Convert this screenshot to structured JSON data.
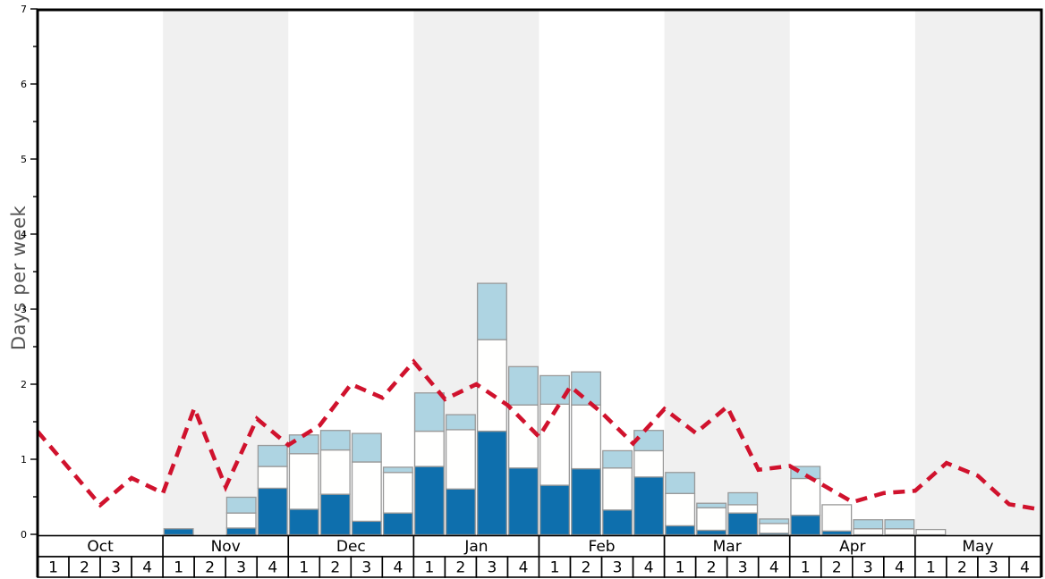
{
  "chart_data": {
    "type": "bar",
    "subtype": "stacked_bars_with_dashed_line_overlay",
    "title": "",
    "xlabel": "",
    "ylabel": "Days per week",
    "ylim": [
      0,
      7
    ],
    "y_major_ticks": [
      0,
      1,
      2,
      3,
      4,
      5,
      6,
      7
    ],
    "y_minor_tick_step": 0.5,
    "grid": false,
    "legend": "none",
    "months": [
      "Oct",
      "Nov",
      "Dec",
      "Jan",
      "Feb",
      "Mar",
      "Apr",
      "May"
    ],
    "week_labels": [
      "1",
      "2",
      "3",
      "4"
    ],
    "shaded_months": [
      "Nov",
      "Jan",
      "Mar",
      "May"
    ],
    "series": [
      {
        "name": "dark-blue-days",
        "color": "#0e6fad",
        "values": [
          0,
          0,
          0,
          0,
          0.08,
          0,
          0.09,
          0.62,
          0.34,
          0.54,
          0.18,
          0.29,
          0.91,
          0.61,
          1.38,
          0.89,
          0.66,
          0.88,
          0.33,
          0.77,
          0.12,
          0.06,
          0.29,
          0.02,
          0.26,
          0.05,
          0,
          0,
          0,
          0,
          0,
          0
        ]
      },
      {
        "name": "white-days",
        "color": "#fffffe",
        "values": [
          0,
          0,
          0,
          0,
          0,
          0,
          0.2,
          0.29,
          0.74,
          0.59,
          0.79,
          0.54,
          0.47,
          0.79,
          1.22,
          0.84,
          1.08,
          0.85,
          0.56,
          0.35,
          0.43,
          0.3,
          0.11,
          0.13,
          0.49,
          0.35,
          0.08,
          0.08,
          0.07,
          0,
          0,
          0
        ]
      },
      {
        "name": "light-blue-days",
        "color": "#aed4e2",
        "values": [
          0,
          0,
          0,
          0,
          0,
          0,
          0.21,
          0.28,
          0.25,
          0.26,
          0.38,
          0.07,
          0.51,
          0.2,
          0.75,
          0.51,
          0.38,
          0.44,
          0.23,
          0.27,
          0.28,
          0.06,
          0.16,
          0.06,
          0.16,
          0,
          0.12,
          0.12,
          0,
          0,
          0,
          0
        ]
      }
    ],
    "line_series": {
      "name": "red-dashed-line",
      "color": "#d0122d",
      "style": "dashed",
      "x_unit": "week_boundary_index_0_to_32",
      "values": [
        1.37,
        0.88,
        0.39,
        0.75,
        0.55,
        1.68,
        0.63,
        1.54,
        1.19,
        1.45,
        2.0,
        1.82,
        2.3,
        1.8,
        2.0,
        1.72,
        1.3,
        1.97,
        1.62,
        1.21,
        1.67,
        1.35,
        1.7,
        0.86,
        0.91,
        0.67,
        0.43,
        0.55,
        0.58,
        0.95,
        0.78,
        0.4,
        0.33
      ]
    },
    "colors": {
      "band_shade": "#f0f0f0",
      "bar_border": "#999999",
      "axis": "#000000",
      "tick_label": "#000000",
      "month_label": "#000000",
      "week_label": "#000000",
      "ylabel_text": "#555555",
      "cell_fill": "#ffffff"
    }
  }
}
